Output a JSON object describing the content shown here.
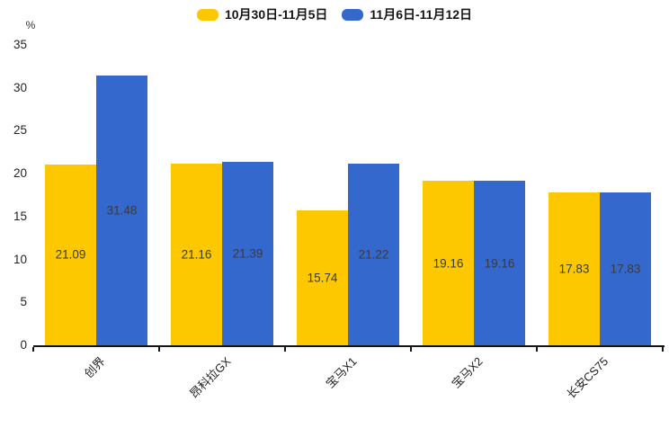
{
  "chart_data": {
    "type": "bar",
    "title": "",
    "ylabel": "%",
    "xlabel": "",
    "categories": [
      "创界",
      "昂科拉GX",
      "宝马X1",
      "宝马X2",
      "长安CS75"
    ],
    "series": [
      {
        "name": "10月30日-11月5日",
        "color": "#FDC800",
        "values": [
          21.09,
          21.16,
          15.74,
          19.16,
          17.83
        ]
      },
      {
        "name": "11月6日-11月12日",
        "color": "#3568CD",
        "values": [
          31.48,
          21.39,
          21.22,
          19.16,
          17.83
        ]
      }
    ],
    "ylim": [
      0,
      35
    ],
    "yticks": [
      0,
      5,
      10,
      15,
      20,
      25,
      30,
      35
    ],
    "grid": false,
    "legend_position": "top-center",
    "value_labels": "centered-inside-bars",
    "xtick_label_rotation_deg": 45
  }
}
